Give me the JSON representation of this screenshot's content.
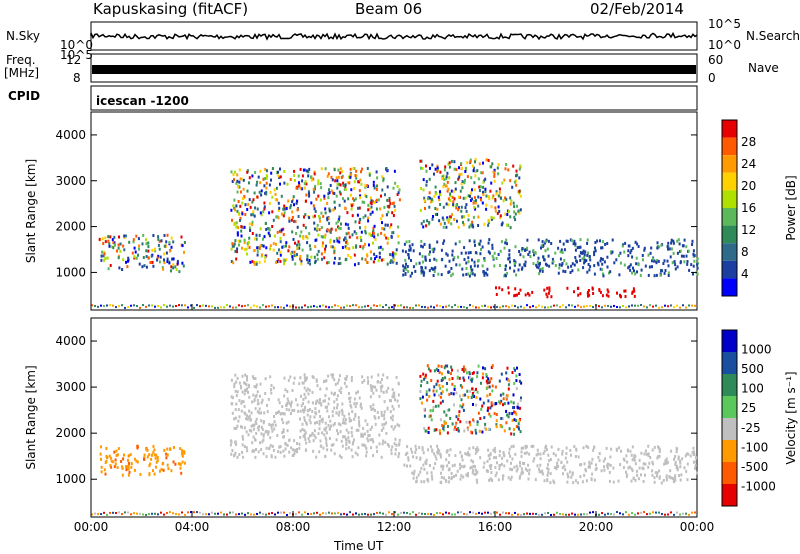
{
  "header": {
    "station": "Kapuskasing (fitACF)",
    "beam": "Beam 06",
    "date": "02/Feb/2014"
  },
  "labels": {
    "nsky": "N.Sky",
    "freq": "Freq.",
    "freq_unit": "[MHz]",
    "cpid": "CPID",
    "nsearch": "N.Search",
    "nave": "Nave",
    "program": "icescan -1200",
    "ylabel": "Slant Range [km]",
    "xlabel": "Time UT",
    "power_label": "Power [dB]",
    "velocity_label": "Velocity [m s⁻¹]"
  },
  "noise_axis": {
    "left": [
      "10^5",
      "10^0"
    ],
    "right": [
      "10^5",
      "10^0"
    ]
  },
  "freq_axis": {
    "left": [
      "12",
      "8"
    ],
    "right": [
      "60",
      "0"
    ]
  },
  "chart_data": [
    {
      "type": "heatmap",
      "name": "power",
      "x_ticks": [
        "00:00",
        "04:00",
        "08:00",
        "12:00",
        "16:00",
        "20:00",
        "00:00"
      ],
      "xlim": [
        0,
        24
      ],
      "y_ticks": [
        1000,
        2000,
        3000,
        4000
      ],
      "ylim": [
        180,
        4500
      ],
      "colorbar": {
        "ticks": [
          "28",
          "24",
          "20",
          "16",
          "12",
          "8",
          "4"
        ],
        "colors": [
          "#e60000",
          "#ff5a00",
          "#ff9a00",
          "#ffd100",
          "#aee000",
          "#5bb85b",
          "#2e8b57",
          "#2e6b8b",
          "#1a3fa0",
          "#0000ff"
        ]
      },
      "regions": [
        {
          "x": [
            0.3,
            3.7
          ],
          "y": [
            1050,
            1850
          ],
          "level": "mixed"
        },
        {
          "x": [
            5.5,
            12.2
          ],
          "y": [
            1200,
            3300
          ],
          "level": "mixed"
        },
        {
          "x": [
            12.3,
            24.0
          ],
          "y": [
            950,
            1750
          ],
          "level": "blue"
        },
        {
          "x": [
            16.0,
            21.5
          ],
          "y": [
            500,
            700
          ],
          "level": "red"
        },
        {
          "x": [
            13.0,
            17.0
          ],
          "y": [
            2000,
            3500
          ],
          "level": "mixed"
        }
      ]
    },
    {
      "type": "heatmap",
      "name": "velocity",
      "x_ticks": [
        "00:00",
        "04:00",
        "08:00",
        "12:00",
        "16:00",
        "20:00",
        "00:00"
      ],
      "xlim": [
        0,
        24
      ],
      "y_ticks": [
        1000,
        2000,
        3000,
        4000
      ],
      "ylim": [
        180,
        4500
      ],
      "colorbar": {
        "ticks": [
          "1000",
          "500",
          "100",
          "25",
          "-25",
          "-100",
          "-500",
          "-1000"
        ],
        "colors": [
          "#0000c8",
          "#1a4fa0",
          "#2e8b57",
          "#5bc85b",
          "#bfbfbf",
          "#ff9a00",
          "#ff5a00",
          "#e60000"
        ]
      },
      "regions": [
        {
          "x": [
            0.3,
            3.7
          ],
          "y": [
            1100,
            1750
          ],
          "level": "orange"
        },
        {
          "x": [
            5.5,
            12.2
          ],
          "y": [
            1500,
            3300
          ],
          "level": "gray"
        },
        {
          "x": [
            12.3,
            24.0
          ],
          "y": [
            950,
            1750
          ],
          "level": "gray"
        },
        {
          "x": [
            13.0,
            17.0
          ],
          "y": [
            2000,
            3500
          ],
          "level": "mixed"
        }
      ]
    }
  ]
}
